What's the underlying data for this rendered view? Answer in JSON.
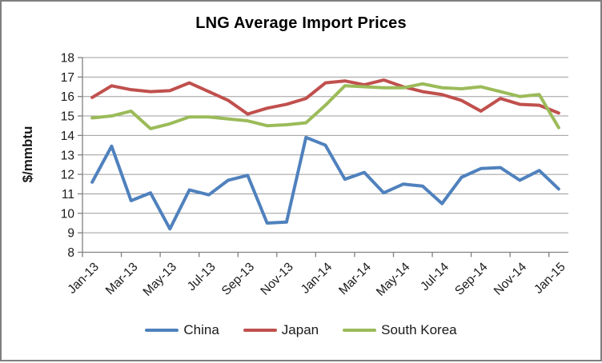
{
  "window": {
    "background": "#ffffff",
    "border_color": "#7f7f7f"
  },
  "chart_data": {
    "type": "line",
    "title": "LNG Average Import Prices",
    "xlabel": "",
    "ylabel": "$/mmbtu",
    "ylim": [
      8,
      18
    ],
    "ytick_step": 1,
    "x_tick_interval": 2,
    "grid": true,
    "legend_position": "bottom",
    "categories": [
      "Jan-13",
      "Feb-13",
      "Mar-13",
      "Apr-13",
      "May-13",
      "Jun-13",
      "Jul-13",
      "Aug-13",
      "Sep-13",
      "Oct-13",
      "Nov-13",
      "Dec-13",
      "Jan-14",
      "Feb-14",
      "Mar-14",
      "Apr-14",
      "May-14",
      "Jun-14",
      "Jul-14",
      "Aug-14",
      "Sep-14",
      "Oct-14",
      "Nov-14",
      "Dec-14",
      "Jan-15"
    ],
    "series": [
      {
        "name": "China",
        "color": "#4F81BD",
        "values": [
          11.6,
          13.45,
          10.65,
          11.05,
          9.2,
          11.2,
          10.95,
          11.7,
          11.95,
          9.5,
          9.55,
          13.9,
          13.5,
          11.75,
          12.1,
          11.05,
          11.5,
          11.4,
          10.5,
          11.85,
          12.3,
          12.35,
          11.7,
          12.2,
          11.25
        ]
      },
      {
        "name": "Japan",
        "color": "#C0504D",
        "values": [
          15.95,
          16.55,
          16.35,
          16.25,
          16.3,
          16.7,
          16.25,
          15.8,
          15.1,
          15.4,
          15.6,
          15.9,
          16.7,
          16.8,
          16.6,
          16.85,
          16.5,
          16.25,
          16.1,
          15.8,
          15.25,
          15.9,
          15.6,
          15.55,
          15.15
        ]
      },
      {
        "name": "South Korea",
        "color": "#9BBB59",
        "values": [
          14.9,
          15.0,
          15.25,
          14.35,
          14.6,
          14.95,
          14.95,
          14.85,
          14.75,
          14.5,
          14.55,
          14.65,
          15.55,
          16.55,
          16.5,
          16.45,
          16.45,
          16.65,
          16.45,
          16.4,
          16.5,
          16.25,
          16.0,
          16.1,
          14.4
        ]
      }
    ],
    "style": {
      "gridline_color": "#9c9c9c",
      "axis_color": "#808080",
      "tick_label_color": "#1a1a1a",
      "line_width": 4
    }
  }
}
